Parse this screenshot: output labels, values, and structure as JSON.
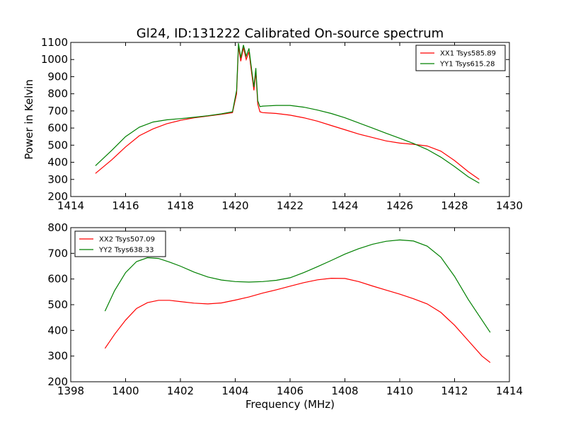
{
  "figure": {
    "title": "Gl24, ID:131222 Calibrated On-source spectrum"
  },
  "chart_data": [
    {
      "type": "line",
      "xlabel": "",
      "ylabel": "Power in Kelvin",
      "xlim": [
        1414,
        1430
      ],
      "ylim": [
        300,
        1100
      ],
      "yaxis_min_label": 200,
      "xticks": [
        1414,
        1416,
        1418,
        1420,
        1422,
        1424,
        1426,
        1428,
        1430
      ],
      "yticks": [
        200,
        300,
        400,
        500,
        600,
        700,
        800,
        900,
        1000,
        1100
      ],
      "grid": false,
      "legend_position": "top-right",
      "series": [
        {
          "name": "XX1 Tsys585.89",
          "color": "#ff0000",
          "x": [
            1414.9,
            1415.5,
            1416.0,
            1416.5,
            1417.0,
            1417.5,
            1418.0,
            1418.5,
            1419.0,
            1419.5,
            1419.9,
            1420.05,
            1420.12,
            1420.2,
            1420.3,
            1420.4,
            1420.5,
            1420.6,
            1420.68,
            1420.75,
            1420.82,
            1420.9,
            1421.0,
            1421.5,
            1422.0,
            1422.5,
            1423.0,
            1423.5,
            1424.0,
            1424.5,
            1425.0,
            1425.5,
            1426.0,
            1426.5,
            1427.0,
            1427.5,
            1428.0,
            1428.5,
            1428.9
          ],
          "y": [
            335,
            415,
            490,
            555,
            595,
            625,
            645,
            660,
            670,
            680,
            690,
            800,
            1080,
            990,
            1070,
            1000,
            1045,
            920,
            820,
            930,
            740,
            695,
            690,
            685,
            675,
            660,
            640,
            615,
            590,
            565,
            545,
            525,
            512,
            505,
            495,
            465,
            410,
            345,
            300
          ]
        },
        {
          "name": "YY1 Tsys615.28",
          "color": "#008000",
          "x": [
            1414.9,
            1415.5,
            1416.0,
            1416.5,
            1417.0,
            1417.5,
            1418.0,
            1418.5,
            1419.0,
            1419.5,
            1419.9,
            1420.05,
            1420.12,
            1420.2,
            1420.3,
            1420.4,
            1420.5,
            1420.6,
            1420.68,
            1420.75,
            1420.82,
            1420.9,
            1421.0,
            1421.5,
            1422.0,
            1422.5,
            1423.0,
            1423.5,
            1424.0,
            1424.5,
            1425.0,
            1425.5,
            1426.0,
            1426.5,
            1427.0,
            1427.5,
            1428.0,
            1428.5,
            1428.9
          ],
          "y": [
            380,
            470,
            550,
            605,
            635,
            648,
            655,
            663,
            672,
            683,
            695,
            820,
            1095,
            1010,
            1085,
            1020,
            1065,
            940,
            840,
            950,
            760,
            725,
            728,
            732,
            732,
            722,
            705,
            685,
            660,
            630,
            600,
            570,
            540,
            510,
            475,
            430,
            375,
            315,
            278
          ]
        }
      ]
    },
    {
      "type": "line",
      "xlabel": "Frequency (MHz)",
      "ylabel": "",
      "xlim": [
        1398,
        1414
      ],
      "ylim": [
        200,
        800
      ],
      "xticks": [
        1398,
        1400,
        1402,
        1404,
        1406,
        1408,
        1410,
        1412,
        1414
      ],
      "yticks": [
        200,
        300,
        400,
        500,
        600,
        700,
        800
      ],
      "grid": false,
      "legend_position": "top-left",
      "series": [
        {
          "name": "XX2 Tsys507.09",
          "color": "#ff0000",
          "x": [
            1399.25,
            1399.6,
            1400.0,
            1400.4,
            1400.8,
            1401.2,
            1401.6,
            1402.0,
            1402.5,
            1403.0,
            1403.5,
            1404.0,
            1404.5,
            1405.0,
            1405.5,
            1406.0,
            1406.5,
            1407.0,
            1407.5,
            1408.0,
            1408.5,
            1409.0,
            1409.5,
            1410.0,
            1410.5,
            1411.0,
            1411.5,
            1412.0,
            1412.5,
            1413.0,
            1413.3
          ],
          "y": [
            330,
            385,
            440,
            485,
            508,
            517,
            517,
            512,
            506,
            503,
            507,
            518,
            530,
            545,
            558,
            572,
            586,
            597,
            603,
            602,
            590,
            573,
            557,
            541,
            523,
            503,
            470,
            420,
            360,
            300,
            275
          ]
        },
        {
          "name": "YY2 Tsys638.33",
          "color": "#008000",
          "x": [
            1399.25,
            1399.6,
            1400.0,
            1400.4,
            1400.8,
            1401.2,
            1401.6,
            1402.0,
            1402.5,
            1403.0,
            1403.5,
            1404.0,
            1404.5,
            1405.0,
            1405.5,
            1406.0,
            1406.5,
            1407.0,
            1407.5,
            1408.0,
            1408.5,
            1409.0,
            1409.5,
            1410.0,
            1410.5,
            1411.0,
            1411.5,
            1412.0,
            1412.5,
            1413.0,
            1413.3
          ],
          "y": [
            475,
            555,
            625,
            668,
            683,
            680,
            666,
            650,
            627,
            608,
            596,
            590,
            588,
            590,
            595,
            605,
            625,
            648,
            672,
            697,
            718,
            735,
            747,
            752,
            748,
            728,
            685,
            610,
            520,
            440,
            392
          ]
        }
      ]
    }
  ]
}
